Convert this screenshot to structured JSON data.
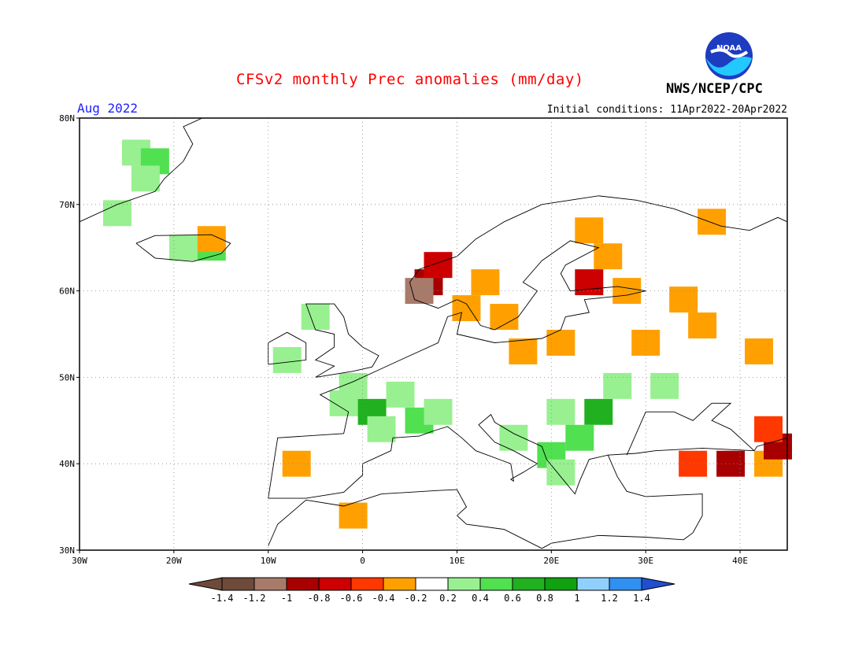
{
  "header": {
    "title": "CFSv2 monthly Prec anomalies (mm/day)",
    "period": "Aug 2022",
    "initial_conditions": "Initial conditions: 11Apr2022-20Apr2022",
    "agency": "NWS/NCEP/CPC",
    "logo_text": "NOAA"
  },
  "map": {
    "lon_range": [
      -30,
      45
    ],
    "lat_range": [
      30,
      80
    ],
    "grid": true,
    "lon_labels": [
      "30W",
      "20W",
      "10W",
      "0",
      "10E",
      "20E",
      "30E",
      "40E"
    ],
    "lat_labels": [
      "30N",
      "40N",
      "50N",
      "60N",
      "70N",
      "80N"
    ],
    "anomaly_cells": [
      {
        "lon": -24,
        "lat": 76,
        "v": 0.3
      },
      {
        "lon": -22,
        "lat": 75,
        "v": 0.5
      },
      {
        "lon": -23,
        "lat": 73,
        "v": 0.3
      },
      {
        "lon": -26,
        "lat": 69,
        "v": 0.3
      },
      {
        "lon": -19,
        "lat": 65,
        "v": 0.3
      },
      {
        "lon": -16,
        "lat": 65,
        "v": 0.5
      },
      {
        "lon": -16,
        "lat": 66,
        "v": -0.3
      },
      {
        "lon": -8,
        "lat": 52,
        "v": 0.3
      },
      {
        "lon": -5,
        "lat": 57,
        "v": 0.3
      },
      {
        "lon": -2,
        "lat": 47,
        "v": 0.3
      },
      {
        "lon": 1,
        "lat": 46,
        "v": 0.7
      },
      {
        "lon": 2,
        "lat": 44,
        "v": 0.3
      },
      {
        "lon": 4,
        "lat": 48,
        "v": 0.3
      },
      {
        "lon": 6,
        "lat": 45,
        "v": 0.5
      },
      {
        "lon": -1,
        "lat": 49,
        "v": 0.3
      },
      {
        "lon": 8,
        "lat": 46,
        "v": 0.3
      },
      {
        "lon": -7,
        "lat": 40,
        "v": -0.3
      },
      {
        "lon": -1,
        "lat": 34,
        "v": -0.3
      },
      {
        "lon": 7,
        "lat": 61,
        "v": -0.9
      },
      {
        "lon": 6,
        "lat": 60,
        "v": -1.1
      },
      {
        "lon": 8,
        "lat": 63,
        "v": -0.7
      },
      {
        "lon": 13,
        "lat": 61,
        "v": -0.3
      },
      {
        "lon": 11,
        "lat": 58,
        "v": -0.3
      },
      {
        "lon": 15,
        "lat": 57,
        "v": -0.3
      },
      {
        "lon": 24,
        "lat": 67,
        "v": -0.3
      },
      {
        "lon": 26,
        "lat": 64,
        "v": -0.3
      },
      {
        "lon": 24,
        "lat": 61,
        "v": -0.7
      },
      {
        "lon": 28,
        "lat": 60,
        "v": -0.3
      },
      {
        "lon": 34,
        "lat": 59,
        "v": -0.3
      },
      {
        "lon": 36,
        "lat": 56,
        "v": -0.3
      },
      {
        "lon": 30,
        "lat": 54,
        "v": -0.3
      },
      {
        "lon": 21,
        "lat": 54,
        "v": -0.3
      },
      {
        "lon": 17,
        "lat": 53,
        "v": -0.3
      },
      {
        "lon": 42,
        "lat": 53,
        "v": -0.3
      },
      {
        "lon": 37,
        "lat": 68,
        "v": -0.3
      },
      {
        "lon": 21,
        "lat": 46,
        "v": 0.3
      },
      {
        "lon": 25,
        "lat": 46,
        "v": 0.7
      },
      {
        "lon": 23,
        "lat": 43,
        "v": 0.5
      },
      {
        "lon": 20,
        "lat": 41,
        "v": 0.5
      },
      {
        "lon": 21,
        "lat": 39,
        "v": 0.3
      },
      {
        "lon": 27,
        "lat": 49,
        "v": 0.3
      },
      {
        "lon": 32,
        "lat": 49,
        "v": 0.3
      },
      {
        "lon": 16,
        "lat": 43,
        "v": 0.3
      },
      {
        "lon": 35,
        "lat": 40,
        "v": -0.5
      },
      {
        "lon": 39,
        "lat": 40,
        "v": -0.9
      },
      {
        "lon": 43,
        "lat": 40,
        "v": -0.3
      },
      {
        "lon": 44,
        "lat": 42,
        "v": -1.0
      },
      {
        "lon": 43,
        "lat": 44,
        "v": -0.5
      }
    ]
  },
  "colorbar": {
    "tick_labels": [
      "-1.4",
      "-1.2",
      "-1",
      "-0.8",
      "-0.6",
      "-0.4",
      "-0.2",
      "0.2",
      "0.4",
      "0.6",
      "0.8",
      "1",
      "1.2",
      "1.4"
    ],
    "colors": [
      "#6e4a3a",
      "#a87a6a",
      "#a80000",
      "#cc0000",
      "#ff3800",
      "#ffa000",
      "#ffffff",
      "#98f090",
      "#50e050",
      "#20b020",
      "#10a010",
      "#90d0ff",
      "#3090f0",
      "#2050d0"
    ]
  }
}
